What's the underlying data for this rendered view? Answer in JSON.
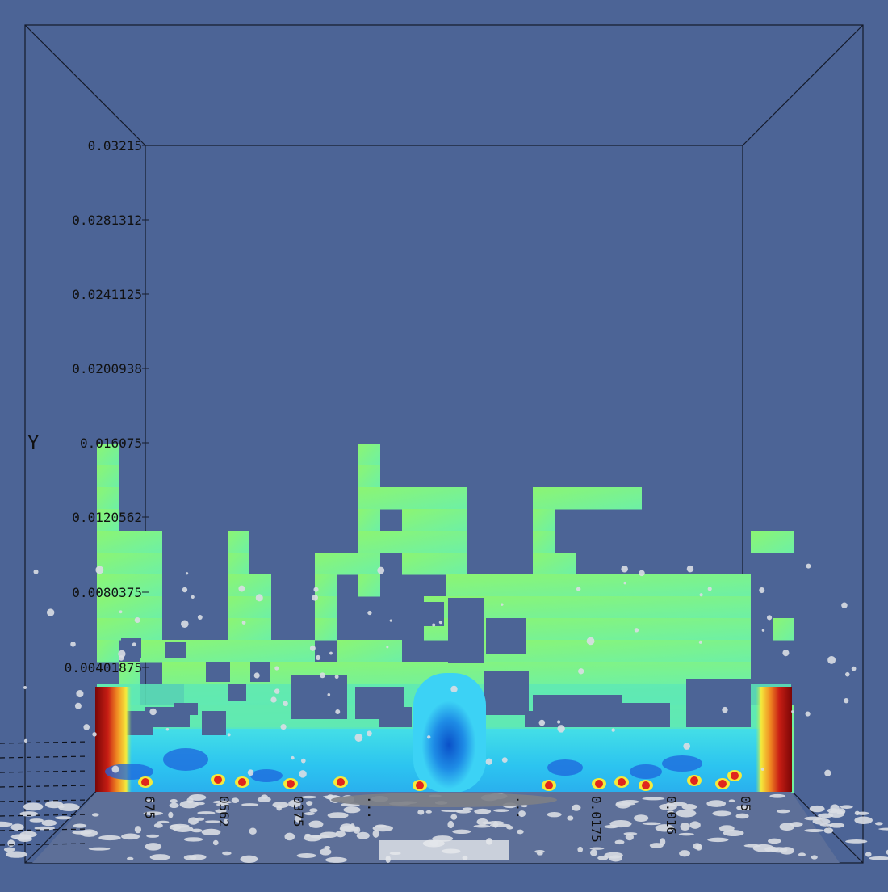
{
  "scene": {
    "background_color": "#4c6496",
    "y_axis_title": "Y",
    "y_tick_labels": [
      "0.03215",
      "0.0281312",
      "0.0241125",
      "0.0200938",
      "0.016075",
      "0.0120562",
      "0.0080375",
      "0.00401875"
    ],
    "x_tick_fragments": [
      "675",
      "0562",
      "0375",
      "...",
      "...",
      "0.0175",
      "0.016",
      "05"
    ],
    "colormap": {
      "dark_red": "#8b0a0a",
      "red": "#e0261e",
      "yellow": "#f5ea3c",
      "green": "#8cf26e",
      "cyan": "#3cdcf5",
      "blue": "#1e64dc",
      "navy": "#0a3cb4"
    },
    "particle_color": "#d9dde3"
  }
}
